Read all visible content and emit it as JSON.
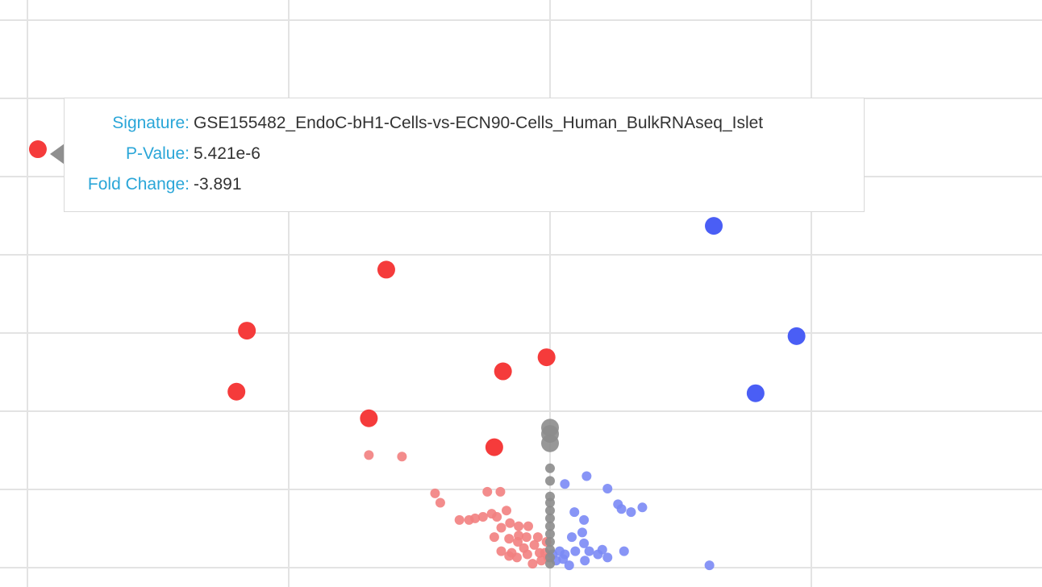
{
  "chart_data": {
    "type": "scatter",
    "title": "",
    "xlabel": "",
    "ylabel": "",
    "xlim": [
      -6,
      6
    ],
    "ylim": [
      0,
      7.2
    ],
    "grid": true,
    "colors": {
      "up": "#f53b3b",
      "down": "#4a5ef5",
      "neutral": "#8c8c8c",
      "grid": "#e3e3e3"
    },
    "series": [
      {
        "kind": "significant-negative",
        "color": "#f53b3b",
        "points": [
          {
            "x": -5.88,
            "y": 5.35
          },
          {
            "x": -1.88,
            "y": 3.81
          },
          {
            "x": -3.48,
            "y": 3.03
          },
          {
            "x": -3.6,
            "y": 2.25
          },
          {
            "x": -2.08,
            "y": 1.91
          },
          {
            "x": -0.54,
            "y": 2.51
          },
          {
            "x": -0.04,
            "y": 2.69
          },
          {
            "x": -0.64,
            "y": 1.54
          }
        ]
      },
      {
        "kind": "significant-positive",
        "color": "#4a5ef5",
        "points": [
          {
            "x": 1.88,
            "y": 4.37
          },
          {
            "x": 2.83,
            "y": 2.96
          },
          {
            "x": 2.36,
            "y": 2.23
          }
        ]
      },
      {
        "kind": "neutral",
        "color": "#8c8c8c",
        "points": [
          {
            "x": 0.0,
            "y": 1.79
          },
          {
            "x": 0.0,
            "y": 1.71
          },
          {
            "x": 0.0,
            "y": 1.59
          },
          {
            "x": 0.0,
            "y": 1.27
          },
          {
            "x": 0.0,
            "y": 1.11
          },
          {
            "x": 0.0,
            "y": 0.91
          },
          {
            "x": 0.0,
            "y": 0.83
          },
          {
            "x": 0.0,
            "y": 0.73
          },
          {
            "x": 0.0,
            "y": 0.63
          },
          {
            "x": 0.0,
            "y": 0.53
          },
          {
            "x": 0.0,
            "y": 0.43
          },
          {
            "x": 0.0,
            "y": 0.33
          },
          {
            "x": 0.0,
            "y": 0.23
          },
          {
            "x": 0.0,
            "y": 0.13
          },
          {
            "x": 0.0,
            "y": 0.05
          }
        ]
      },
      {
        "kind": "nonsignificant-negative",
        "color": "#f28080",
        "points": [
          {
            "x": -2.08,
            "y": 1.44
          },
          {
            "x": -1.7,
            "y": 1.42
          },
          {
            "x": -1.32,
            "y": 0.95
          },
          {
            "x": -1.26,
            "y": 0.83
          },
          {
            "x": -0.72,
            "y": 0.97
          },
          {
            "x": -0.57,
            "y": 0.97
          },
          {
            "x": -1.04,
            "y": 0.61
          },
          {
            "x": -0.93,
            "y": 0.61
          },
          {
            "x": -0.86,
            "y": 0.63
          },
          {
            "x": -0.77,
            "y": 0.65
          },
          {
            "x": -0.67,
            "y": 0.69
          },
          {
            "x": -0.61,
            "y": 0.65
          },
          {
            "x": -0.5,
            "y": 0.73
          },
          {
            "x": -0.56,
            "y": 0.51
          },
          {
            "x": -0.46,
            "y": 0.57
          },
          {
            "x": -0.36,
            "y": 0.53
          },
          {
            "x": -0.25,
            "y": 0.53
          },
          {
            "x": -0.64,
            "y": 0.39
          },
          {
            "x": -0.47,
            "y": 0.37
          },
          {
            "x": -0.36,
            "y": 0.41
          },
          {
            "x": -0.14,
            "y": 0.39
          },
          {
            "x": -0.56,
            "y": 0.21
          },
          {
            "x": -0.44,
            "y": 0.19
          },
          {
            "x": -0.3,
            "y": 0.25
          },
          {
            "x": -0.18,
            "y": 0.29
          },
          {
            "x": -0.06,
            "y": 0.19
          },
          {
            "x": -0.1,
            "y": 0.09
          },
          {
            "x": -0.38,
            "y": 0.13
          },
          {
            "x": -0.26,
            "y": 0.17
          },
          {
            "x": -0.04,
            "y": 0.33
          },
          {
            "x": -0.37,
            "y": 0.33
          },
          {
            "x": -0.2,
            "y": 0.05
          },
          {
            "x": -0.12,
            "y": 0.19
          },
          {
            "x": -0.02,
            "y": 0.13
          },
          {
            "x": -0.47,
            "y": 0.15
          },
          {
            "x": -0.27,
            "y": 0.39
          }
        ]
      },
      {
        "kind": "nonsignificant-positive",
        "color": "#7b8af5",
        "points": [
          {
            "x": 0.17,
            "y": 1.07
          },
          {
            "x": 0.42,
            "y": 1.17
          },
          {
            "x": 0.66,
            "y": 1.01
          },
          {
            "x": 0.78,
            "y": 0.81
          },
          {
            "x": 0.82,
            "y": 0.75
          },
          {
            "x": 0.93,
            "y": 0.71
          },
          {
            "x": 1.06,
            "y": 0.77
          },
          {
            "x": 0.28,
            "y": 0.71
          },
          {
            "x": 0.39,
            "y": 0.61
          },
          {
            "x": 0.37,
            "y": 0.45
          },
          {
            "x": 0.25,
            "y": 0.39
          },
          {
            "x": 0.39,
            "y": 0.31
          },
          {
            "x": 0.45,
            "y": 0.21
          },
          {
            "x": 0.55,
            "y": 0.17
          },
          {
            "x": 0.66,
            "y": 0.13
          },
          {
            "x": 0.17,
            "y": 0.17
          },
          {
            "x": 0.11,
            "y": 0.21
          },
          {
            "x": 0.03,
            "y": 0.17
          },
          {
            "x": 0.07,
            "y": 0.09
          },
          {
            "x": 0.4,
            "y": 0.09
          },
          {
            "x": 0.6,
            "y": 0.23
          },
          {
            "x": 0.29,
            "y": 0.21
          },
          {
            "x": 0.22,
            "y": 0.03
          },
          {
            "x": 0.85,
            "y": 0.21
          },
          {
            "x": 0.15,
            "y": 0.11
          },
          {
            "x": 1.83,
            "y": 0.03
          }
        ]
      }
    ],
    "tooltip": {
      "labels": [
        "Signature:",
        "P-Value:",
        "Fold Change:"
      ],
      "signature": "GSE155482_EndoC-bH1-Cells-vs-ECN90-Cells_Human_BulkRNAseq_Islet",
      "p_value": "5.421e-6",
      "fold_change": "-3.891"
    }
  }
}
